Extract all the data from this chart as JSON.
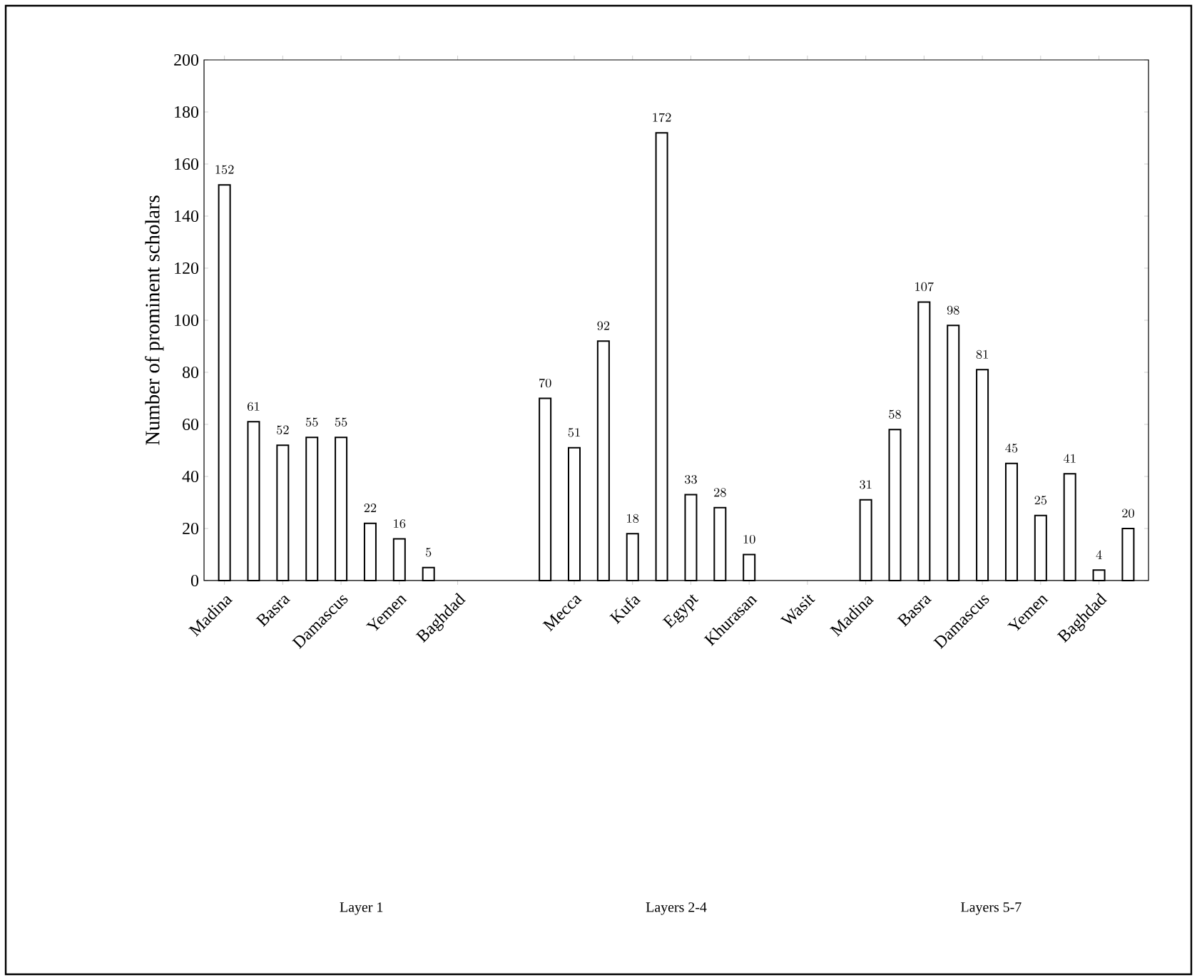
{
  "chart_data": {
    "type": "bar",
    "ylabel": "Number of prominent scholars",
    "categories": [
      "Madina",
      null,
      "Basra",
      null,
      "Damascus",
      null,
      "Yemen",
      null,
      "Baghdad",
      null,
      null,
      null,
      "Mecca",
      null,
      "Kufa",
      null,
      "Egypt",
      null,
      "Khurasan",
      null,
      "Wasit",
      null,
      "Madina",
      null,
      "Basra",
      null,
      "Damascus",
      null,
      "Yemen",
      null,
      "Baghdad",
      null
    ],
    "values": [
      152,
      61,
      52,
      55,
      55,
      22,
      16,
      5,
      null,
      null,
      null,
      70,
      51,
      92,
      18,
      172,
      33,
      28,
      10,
      null,
      null,
      null,
      31,
      58,
      107,
      98,
      81,
      45,
      25,
      41,
      4,
      20
    ],
    "color": "#ffffff",
    "ylim": [
      0,
      200
    ],
    "yticks": [
      0,
      20,
      40,
      60,
      80,
      100,
      120,
      140,
      160,
      180,
      200
    ],
    "data_labels": true,
    "annotations": [
      "Layer 1",
      "Layers 2-4",
      "Layers 5-7"
    ]
  }
}
